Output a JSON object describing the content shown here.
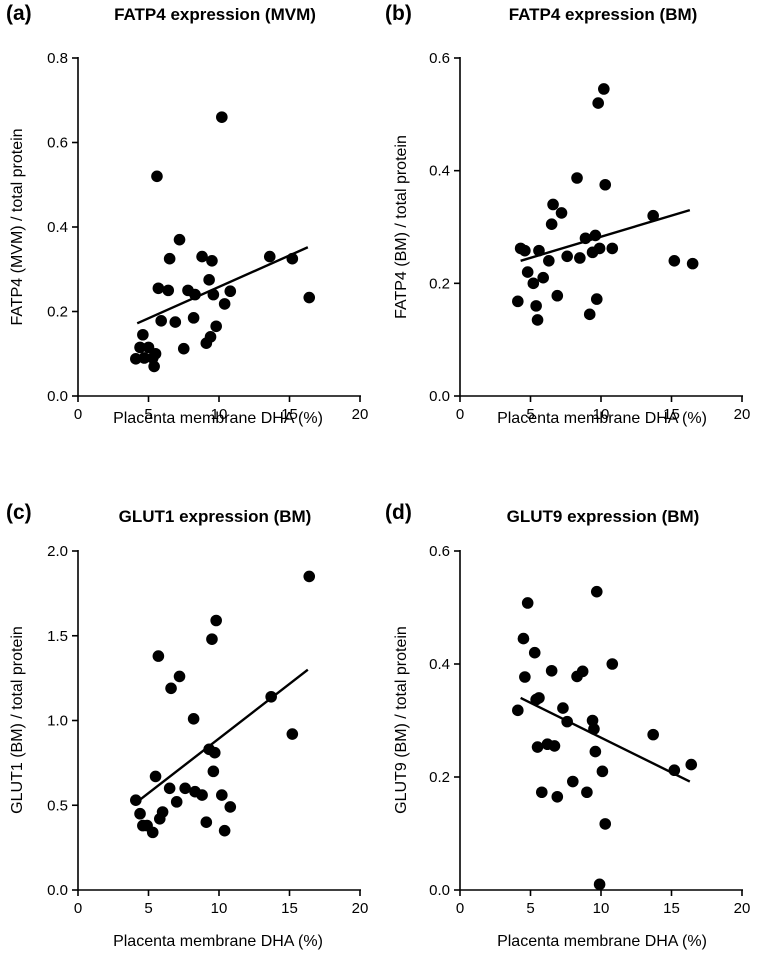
{
  "chart_data": [
    {
      "type": "scatter",
      "panel": "(a)",
      "title": "FATP4 expression (MVM)",
      "xlabel": "Placenta membrane DHA (%)",
      "ylabel": "FATP4 (MVM) / total protein",
      "xlim": [
        0,
        20
      ],
      "ylim": [
        0,
        0.8
      ],
      "xticks": [
        "0",
        "5",
        "10",
        "15",
        "20"
      ],
      "yticks": [
        "0.0",
        "0.2",
        "0.4",
        "0.6",
        "0.8"
      ],
      "x": [
        4.1,
        4.4,
        4.6,
        4.7,
        5.0,
        5.3,
        5.4,
        5.5,
        5.6,
        5.7,
        5.9,
        6.4,
        6.5,
        6.9,
        7.2,
        7.5,
        7.8,
        8.2,
        8.3,
        8.8,
        9.1,
        9.3,
        9.4,
        9.5,
        9.6,
        9.8,
        10.2,
        10.4,
        10.8,
        13.6,
        15.2,
        16.4
      ],
      "y": [
        0.088,
        0.115,
        0.145,
        0.09,
        0.115,
        0.09,
        0.07,
        0.1,
        0.52,
        0.255,
        0.178,
        0.25,
        0.325,
        0.175,
        0.37,
        0.112,
        0.25,
        0.185,
        0.24,
        0.33,
        0.125,
        0.275,
        0.14,
        0.32,
        0.24,
        0.165,
        0.66,
        0.218,
        0.248,
        0.33,
        0.325,
        0.233
      ],
      "fit": {
        "x": [
          4.2,
          16.3
        ],
        "y": [
          0.172,
          0.352
        ]
      }
    },
    {
      "type": "scatter",
      "panel": "(b)",
      "title": "FATP4 expression (BM)",
      "xlabel": "Placenta membrane DHA (%)",
      "ylabel": "FATP4 (BM) / total protein",
      "xlim": [
        0,
        20
      ],
      "ylim": [
        0,
        0.6
      ],
      "xticks": [
        "0",
        "5",
        "10",
        "15",
        "20"
      ],
      "yticks": [
        "0.0",
        "0.2",
        "0.4",
        "0.6"
      ],
      "x": [
        4.1,
        4.3,
        4.6,
        4.8,
        5.2,
        5.4,
        5.5,
        5.6,
        5.9,
        6.3,
        6.5,
        6.6,
        6.9,
        7.2,
        7.6,
        8.3,
        8.5,
        8.9,
        9.2,
        9.4,
        9.6,
        9.7,
        9.8,
        9.9,
        10.2,
        10.3,
        10.8,
        13.7,
        15.2,
        16.5
      ],
      "y": [
        0.168,
        0.262,
        0.258,
        0.22,
        0.2,
        0.16,
        0.135,
        0.258,
        0.21,
        0.24,
        0.305,
        0.34,
        0.178,
        0.325,
        0.248,
        0.387,
        0.245,
        0.28,
        0.145,
        0.255,
        0.285,
        0.172,
        0.52,
        0.262,
        0.545,
        0.375,
        0.262,
        0.32,
        0.24,
        0.235
      ],
      "fit": {
        "x": [
          4.3,
          16.3
        ],
        "y": [
          0.24,
          0.33
        ]
      }
    },
    {
      "type": "scatter",
      "panel": "(c)",
      "title": "GLUT1 expression (BM)",
      "xlabel": "Placenta membrane DHA (%)",
      "ylabel": "GLUT1 (BM) / total protein",
      "xlim": [
        0,
        20
      ],
      "ylim": [
        0,
        2.0
      ],
      "xticks": [
        "0",
        "5",
        "10",
        "15",
        "20"
      ],
      "yticks": [
        "0.0",
        "0.5",
        "1.0",
        "1.5",
        "2.0"
      ],
      "x": [
        4.1,
        4.4,
        4.6,
        4.9,
        5.3,
        5.5,
        5.7,
        5.8,
        6.0,
        6.5,
        6.6,
        7.0,
        7.2,
        7.6,
        8.2,
        8.3,
        8.8,
        9.1,
        9.3,
        9.5,
        9.6,
        9.7,
        9.8,
        10.2,
        10.4,
        10.8,
        13.7,
        15.2,
        16.4
      ],
      "y": [
        0.53,
        0.45,
        0.38,
        0.38,
        0.34,
        0.67,
        1.38,
        0.42,
        0.46,
        0.6,
        1.19,
        0.52,
        1.26,
        0.6,
        1.01,
        0.58,
        0.56,
        0.4,
        0.83,
        1.48,
        0.7,
        0.81,
        1.59,
        0.56,
        0.35,
        0.49,
        1.14,
        0.92,
        1.85
      ],
      "fit": {
        "x": [
          4.2,
          16.3
        ],
        "y": [
          0.52,
          1.3
        ]
      }
    },
    {
      "type": "scatter",
      "panel": "(d)",
      "title": "GLUT9 expression (BM)",
      "xlabel": "Placenta membrane DHA (%)",
      "ylabel": "GLUT9 (BM) / total protein",
      "xlim": [
        0,
        20
      ],
      "ylim": [
        0,
        0.6
      ],
      "xticks": [
        "0",
        "5",
        "10",
        "15",
        "20"
      ],
      "yticks": [
        "0.0",
        "0.2",
        "0.4",
        "0.6"
      ],
      "x": [
        4.1,
        4.5,
        4.6,
        4.8,
        5.3,
        5.4,
        5.5,
        5.6,
        5.8,
        6.2,
        6.5,
        6.7,
        6.9,
        7.3,
        7.6,
        8.0,
        8.3,
        8.7,
        9.0,
        9.4,
        9.5,
        9.6,
        9.7,
        9.9,
        10.1,
        10.3,
        10.8,
        13.7,
        15.2,
        16.4
      ],
      "y": [
        0.318,
        0.445,
        0.377,
        0.508,
        0.42,
        0.337,
        0.253,
        0.34,
        0.173,
        0.258,
        0.388,
        0.255,
        0.165,
        0.322,
        0.298,
        0.192,
        0.378,
        0.387,
        0.173,
        0.3,
        0.285,
        0.245,
        0.528,
        0.01,
        0.21,
        0.117,
        0.4,
        0.275,
        0.212,
        0.222
      ],
      "fit": {
        "x": [
          4.3,
          16.3
        ],
        "y": [
          0.34,
          0.192
        ]
      }
    }
  ]
}
